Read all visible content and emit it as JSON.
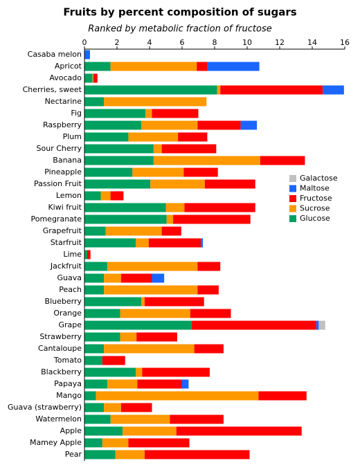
{
  "chart_data": {
    "type": "stacked_barh",
    "title": "Fruits by percent composition of sugars",
    "subtitle": "Ranked by metabolic fraction of fructose",
    "categories": [
      "Casaba melon",
      "Apricot",
      "Avocado",
      "Cherries, sweet",
      "Nectarine",
      "Fig",
      "Raspberry",
      "Plum",
      "Sour Cherry",
      "Banana",
      "Pineapple",
      "Passion Fruit",
      "Lemon",
      "Kiwi fruit",
      "Pomegranate",
      "Grapefruit",
      "Starfruit",
      "Lime",
      "Jackfruit",
      "Guava",
      "Peach",
      "Blueberry",
      "Orange",
      "Grape",
      "Strawberry",
      "Cantaloupe",
      "Tomato",
      "Blackberry",
      "Papaya",
      "Mango",
      "Guava (strawberry)",
      "Watermelon",
      "Apple",
      "Mamey Apple",
      "Pear"
    ],
    "series": [
      {
        "name": "Glucose",
        "color": "#00a060",
        "values": [
          0,
          1.6,
          0.5,
          8.15,
          1.2,
          3.75,
          3.5,
          2.7,
          4.25,
          4.25,
          2.95,
          4.05,
          1.0,
          5.0,
          5.05,
          1.3,
          3.15,
          0.17,
          1.4,
          1.2,
          1.2,
          3.5,
          2.2,
          6.6,
          2.2,
          1.2,
          1.1,
          3.15,
          1.4,
          0.7,
          1.2,
          1.6,
          2.35,
          1.1,
          1.9
        ]
      },
      {
        "name": "Sucrose",
        "color": "#ff9900",
        "values": [
          0,
          5.3,
          0.05,
          0.2,
          6.3,
          0.4,
          3.45,
          3.05,
          0.5,
          6.55,
          3.15,
          3.35,
          0.6,
          1.15,
          0.4,
          3.45,
          0.8,
          0,
          5.55,
          1.05,
          5.75,
          0.2,
          4.3,
          0,
          1.0,
          5.55,
          0,
          0.4,
          1.85,
          10.0,
          1.05,
          3.65,
          3.3,
          1.6,
          1.8
        ]
      },
      {
        "name": "Fructose",
        "color": "#ff0000",
        "values": [
          0,
          0.65,
          0.25,
          6.3,
          0,
          2.85,
          2.65,
          1.8,
          3.35,
          2.75,
          2.1,
          3.1,
          0.8,
          4.35,
          4.75,
          1.2,
          3.2,
          0.2,
          1.4,
          1.9,
          1.3,
          3.65,
          2.5,
          7.65,
          2.5,
          1.8,
          1.4,
          4.15,
          2.75,
          2.95,
          1.9,
          3.3,
          7.7,
          3.75,
          6.45
        ]
      },
      {
        "name": "Maltose",
        "color": "#1a66ff",
        "values": [
          0.34,
          3.2,
          0,
          1.3,
          0,
          0,
          1.0,
          0,
          0,
          0,
          0,
          0,
          0,
          0,
          0,
          0,
          0.13,
          0,
          0,
          0.75,
          0,
          0,
          0,
          0.15,
          0,
          0,
          0,
          0,
          0.4,
          0,
          0,
          0,
          0,
          0,
          0
        ]
      },
      {
        "name": "Galactose",
        "color": "#c0c0c0",
        "values": [
          0,
          0,
          0,
          0,
          0,
          0,
          0,
          0,
          0,
          0,
          0,
          0,
          0,
          0,
          0,
          0,
          0,
          0,
          0,
          0,
          0,
          0,
          0,
          0.4,
          0,
          0,
          0,
          0,
          0,
          0,
          0,
          0,
          0,
          0,
          0
        ]
      }
    ],
    "xlim": [
      0,
      16
    ],
    "xticks": [
      0,
      2,
      4,
      6,
      8,
      10,
      12,
      14,
      16
    ]
  }
}
